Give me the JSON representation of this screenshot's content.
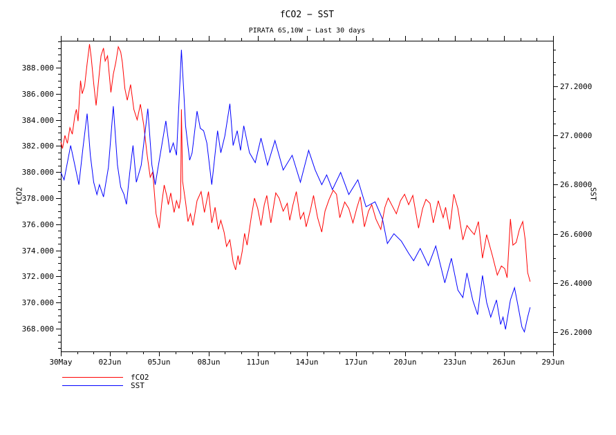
{
  "page": {
    "background": "#ffffff"
  },
  "chart_data": {
    "type": "line",
    "title": "fCO2 − SST",
    "subtitle": "PIRATA 6S,10W − Last 30 days",
    "grid": false,
    "legend_position": "bottom-left",
    "x_axis": {
      "min": 0,
      "max": 30,
      "minor_step_days": 1,
      "major_ticks": [
        {
          "day": 0,
          "label": "30May"
        },
        {
          "day": 3,
          "label": "02Jun"
        },
        {
          "day": 6,
          "label": "05Jun"
        },
        {
          "day": 9,
          "label": "08Jun"
        },
        {
          "day": 12,
          "label": "11Jun"
        },
        {
          "day": 15,
          "label": "14Jun"
        },
        {
          "day": 18,
          "label": "17Jun"
        },
        {
          "day": 21,
          "label": "20Jun"
        },
        {
          "day": 24,
          "label": "23Jun"
        },
        {
          "day": 27,
          "label": "26Jun"
        },
        {
          "day": 30,
          "label": "29Jun"
        }
      ]
    },
    "y_left": {
      "label": "fCO2",
      "min": 366.25,
      "max": 390.06,
      "minor_step": 0.5,
      "major_ticks": [
        {
          "value": 368,
          "label": "368.000"
        },
        {
          "value": 370,
          "label": "370.000"
        },
        {
          "value": 372,
          "label": "372.000"
        },
        {
          "value": 374,
          "label": "374.000"
        },
        {
          "value": 376,
          "label": "376.000"
        },
        {
          "value": 378,
          "label": "378.000"
        },
        {
          "value": 380,
          "label": "380.000"
        },
        {
          "value": 382,
          "label": "382.000"
        },
        {
          "value": 384,
          "label": "384.000"
        },
        {
          "value": 386,
          "label": "386.000"
        },
        {
          "value": 388,
          "label": "388.000"
        }
      ]
    },
    "y_right": {
      "label": "SST",
      "min": 26.12,
      "max": 27.387,
      "minor_step": 0.05,
      "major_ticks": [
        {
          "value": 26.2,
          "label": "26.2000"
        },
        {
          "value": 26.4,
          "label": "26.4000"
        },
        {
          "value": 26.6,
          "label": "26.6000"
        },
        {
          "value": 26.8,
          "label": "26.8000"
        },
        {
          "value": 27.0,
          "label": "27.0000"
        },
        {
          "value": 27.2,
          "label": "27.2000"
        }
      ]
    },
    "legend": [
      {
        "label": "fCO2",
        "color": "#ff0000"
      },
      {
        "label": "SST",
        "color": "#0000ff"
      }
    ],
    "series": [
      {
        "name": "fCO2",
        "axis": "left",
        "color": "#ff0000",
        "points": [
          [
            0.0,
            382.3
          ],
          [
            0.1,
            381.8
          ],
          [
            0.25,
            382.8
          ],
          [
            0.4,
            382.2
          ],
          [
            0.55,
            383.4
          ],
          [
            0.7,
            382.9
          ],
          [
            0.85,
            384.3
          ],
          [
            0.95,
            384.8
          ],
          [
            1.05,
            383.9
          ],
          [
            1.2,
            387.0
          ],
          [
            1.3,
            386.0
          ],
          [
            1.45,
            386.6
          ],
          [
            1.6,
            388.3
          ],
          [
            1.75,
            389.8
          ],
          [
            1.85,
            388.8
          ],
          [
            2.0,
            386.8
          ],
          [
            2.15,
            385.1
          ],
          [
            2.3,
            387.0
          ],
          [
            2.45,
            388.9
          ],
          [
            2.6,
            389.5
          ],
          [
            2.7,
            388.5
          ],
          [
            2.85,
            388.9
          ],
          [
            3.05,
            386.1
          ],
          [
            3.2,
            387.5
          ],
          [
            3.35,
            388.4
          ],
          [
            3.5,
            389.6
          ],
          [
            3.65,
            389.2
          ],
          [
            3.75,
            388.4
          ],
          [
            3.9,
            386.4
          ],
          [
            4.05,
            385.5
          ],
          [
            4.25,
            386.7
          ],
          [
            4.45,
            384.8
          ],
          [
            4.65,
            384.0
          ],
          [
            4.85,
            385.2
          ],
          [
            5.05,
            383.6
          ],
          [
            5.25,
            381.4
          ],
          [
            5.45,
            379.6
          ],
          [
            5.6,
            380.0
          ],
          [
            5.8,
            376.8
          ],
          [
            6.0,
            375.7
          ],
          [
            6.15,
            377.6
          ],
          [
            6.3,
            379.0
          ],
          [
            6.45,
            378.2
          ],
          [
            6.55,
            377.5
          ],
          [
            6.7,
            378.4
          ],
          [
            6.9,
            376.9
          ],
          [
            7.05,
            377.8
          ],
          [
            7.2,
            377.2
          ],
          [
            7.3,
            378.0
          ],
          [
            7.35,
            384.8
          ],
          [
            7.42,
            379.3
          ],
          [
            7.6,
            377.7
          ],
          [
            7.75,
            376.2
          ],
          [
            7.9,
            376.8
          ],
          [
            8.05,
            375.9
          ],
          [
            8.3,
            377.8
          ],
          [
            8.55,
            378.5
          ],
          [
            8.75,
            376.9
          ],
          [
            9.0,
            378.5
          ],
          [
            9.2,
            376.1
          ],
          [
            9.4,
            377.3
          ],
          [
            9.6,
            375.6
          ],
          [
            9.75,
            376.3
          ],
          [
            9.95,
            375.4
          ],
          [
            10.1,
            374.3
          ],
          [
            10.3,
            374.8
          ],
          [
            10.5,
            373.1
          ],
          [
            10.65,
            372.5
          ],
          [
            10.8,
            373.6
          ],
          [
            10.9,
            372.9
          ],
          [
            11.05,
            373.9
          ],
          [
            11.2,
            375.3
          ],
          [
            11.35,
            374.4
          ],
          [
            11.6,
            376.5
          ],
          [
            11.8,
            378.0
          ],
          [
            12.0,
            377.2
          ],
          [
            12.2,
            375.9
          ],
          [
            12.4,
            377.5
          ],
          [
            12.55,
            378.2
          ],
          [
            12.8,
            376.1
          ],
          [
            13.1,
            378.4
          ],
          [
            13.3,
            378.0
          ],
          [
            13.55,
            377.0
          ],
          [
            13.8,
            377.6
          ],
          [
            13.95,
            376.3
          ],
          [
            14.15,
            377.5
          ],
          [
            14.35,
            378.5
          ],
          [
            14.6,
            376.4
          ],
          [
            14.8,
            376.9
          ],
          [
            14.95,
            375.8
          ],
          [
            15.2,
            377.0
          ],
          [
            15.4,
            378.2
          ],
          [
            15.65,
            376.5
          ],
          [
            15.9,
            375.4
          ],
          [
            16.1,
            377.0
          ],
          [
            16.35,
            377.9
          ],
          [
            16.6,
            378.6
          ],
          [
            16.8,
            378.3
          ],
          [
            17.0,
            376.5
          ],
          [
            17.3,
            377.7
          ],
          [
            17.55,
            377.2
          ],
          [
            17.8,
            376.1
          ],
          [
            18.05,
            377.3
          ],
          [
            18.25,
            378.1
          ],
          [
            18.5,
            375.8
          ],
          [
            18.75,
            377.0
          ],
          [
            18.95,
            377.5
          ],
          [
            19.2,
            376.4
          ],
          [
            19.5,
            375.6
          ],
          [
            19.75,
            377.3
          ],
          [
            19.95,
            378.0
          ],
          [
            20.2,
            377.4
          ],
          [
            20.45,
            376.8
          ],
          [
            20.7,
            377.8
          ],
          [
            20.95,
            378.3
          ],
          [
            21.2,
            377.5
          ],
          [
            21.45,
            378.2
          ],
          [
            21.8,
            375.7
          ],
          [
            22.05,
            377.2
          ],
          [
            22.25,
            377.9
          ],
          [
            22.5,
            377.6
          ],
          [
            22.7,
            376.1
          ],
          [
            23.0,
            377.8
          ],
          [
            23.3,
            376.5
          ],
          [
            23.45,
            377.3
          ],
          [
            23.7,
            375.6
          ],
          [
            23.95,
            378.3
          ],
          [
            24.2,
            377.2
          ],
          [
            24.5,
            374.8
          ],
          [
            24.75,
            375.9
          ],
          [
            25.0,
            375.5
          ],
          [
            25.2,
            375.2
          ],
          [
            25.45,
            376.2
          ],
          [
            25.7,
            373.4
          ],
          [
            25.95,
            375.2
          ],
          [
            26.3,
            373.6
          ],
          [
            26.6,
            372.1
          ],
          [
            26.85,
            372.8
          ],
          [
            27.05,
            372.6
          ],
          [
            27.2,
            371.9
          ],
          [
            27.4,
            376.4
          ],
          [
            27.55,
            374.4
          ],
          [
            27.75,
            374.6
          ],
          [
            27.95,
            375.6
          ],
          [
            28.15,
            376.2
          ],
          [
            28.3,
            374.8
          ],
          [
            28.45,
            372.3
          ],
          [
            28.6,
            371.6
          ]
        ]
      },
      {
        "name": "SST",
        "axis": "right",
        "color": "#0000ff",
        "points": [
          [
            0.0,
            26.85
          ],
          [
            0.2,
            26.82
          ],
          [
            0.6,
            26.96
          ],
          [
            0.85,
            26.88
          ],
          [
            1.1,
            26.8
          ],
          [
            1.35,
            26.95
          ],
          [
            1.6,
            27.09
          ],
          [
            1.8,
            26.92
          ],
          [
            2.0,
            26.81
          ],
          [
            2.2,
            26.76
          ],
          [
            2.35,
            26.8
          ],
          [
            2.6,
            26.75
          ],
          [
            2.9,
            26.87
          ],
          [
            3.2,
            27.12
          ],
          [
            3.45,
            26.88
          ],
          [
            3.65,
            26.79
          ],
          [
            3.85,
            26.76
          ],
          [
            4.0,
            26.72
          ],
          [
            4.2,
            26.85
          ],
          [
            4.4,
            26.96
          ],
          [
            4.6,
            26.81
          ],
          [
            4.9,
            26.88
          ],
          [
            5.3,
            27.11
          ],
          [
            5.55,
            26.88
          ],
          [
            5.75,
            26.8
          ],
          [
            6.0,
            26.9
          ],
          [
            6.4,
            27.06
          ],
          [
            6.65,
            26.93
          ],
          [
            6.85,
            26.97
          ],
          [
            7.05,
            26.92
          ],
          [
            7.35,
            27.35
          ],
          [
            7.5,
            27.17
          ],
          [
            7.6,
            27.04
          ],
          [
            7.85,
            26.9
          ],
          [
            8.0,
            26.93
          ],
          [
            8.3,
            27.1
          ],
          [
            8.5,
            27.03
          ],
          [
            8.7,
            27.02
          ],
          [
            8.9,
            26.97
          ],
          [
            9.2,
            26.8
          ],
          [
            9.55,
            27.02
          ],
          [
            9.75,
            26.93
          ],
          [
            10.0,
            27.0
          ],
          [
            10.3,
            27.13
          ],
          [
            10.5,
            26.96
          ],
          [
            10.75,
            27.02
          ],
          [
            10.95,
            26.94
          ],
          [
            11.15,
            27.04
          ],
          [
            11.5,
            26.93
          ],
          [
            11.85,
            26.89
          ],
          [
            12.2,
            26.99
          ],
          [
            12.6,
            26.88
          ],
          [
            13.05,
            26.98
          ],
          [
            13.55,
            26.86
          ],
          [
            14.1,
            26.92
          ],
          [
            14.6,
            26.81
          ],
          [
            15.1,
            26.94
          ],
          [
            15.5,
            26.86
          ],
          [
            15.9,
            26.8
          ],
          [
            16.2,
            26.84
          ],
          [
            16.55,
            26.78
          ],
          [
            17.05,
            26.85
          ],
          [
            17.55,
            26.76
          ],
          [
            18.1,
            26.82
          ],
          [
            18.6,
            26.71
          ],
          [
            19.15,
            26.73
          ],
          [
            19.6,
            26.66
          ],
          [
            19.9,
            26.56
          ],
          [
            20.3,
            26.6
          ],
          [
            20.75,
            26.57
          ],
          [
            21.2,
            26.52
          ],
          [
            21.5,
            26.49
          ],
          [
            21.9,
            26.54
          ],
          [
            22.4,
            26.47
          ],
          [
            22.85,
            26.55
          ],
          [
            23.4,
            26.4
          ],
          [
            23.8,
            26.5
          ],
          [
            24.2,
            26.37
          ],
          [
            24.5,
            26.34
          ],
          [
            24.75,
            26.44
          ],
          [
            25.1,
            26.33
          ],
          [
            25.4,
            26.27
          ],
          [
            25.7,
            26.43
          ],
          [
            25.95,
            26.32
          ],
          [
            26.2,
            26.26
          ],
          [
            26.55,
            26.33
          ],
          [
            26.8,
            26.23
          ],
          [
            26.95,
            26.26
          ],
          [
            27.1,
            26.21
          ],
          [
            27.4,
            26.33
          ],
          [
            27.65,
            26.38
          ],
          [
            27.85,
            26.31
          ],
          [
            28.1,
            26.22
          ],
          [
            28.25,
            26.2
          ],
          [
            28.45,
            26.26
          ],
          [
            28.6,
            26.3
          ]
        ]
      }
    ]
  }
}
